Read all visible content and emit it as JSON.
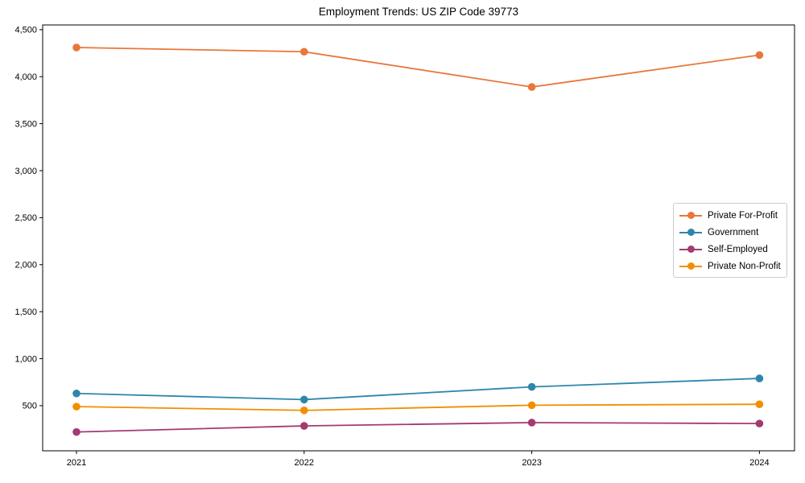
{
  "chart_data": {
    "type": "line",
    "title": "Employment Trends: US ZIP Code 39773",
    "categories": [
      "2021",
      "2022",
      "2023",
      "2024"
    ],
    "series": [
      {
        "name": "Private For-Profit",
        "color": "#E8773B",
        "values": [
          4310,
          4265,
          3890,
          4230
        ]
      },
      {
        "name": "Government",
        "color": "#2E86AB",
        "values": [
          630,
          565,
          700,
          790
        ]
      },
      {
        "name": "Self-Employed",
        "color": "#A23B72",
        "values": [
          220,
          285,
          320,
          310
        ]
      },
      {
        "name": "Private Non-Profit",
        "color": "#F18F01",
        "values": [
          490,
          450,
          505,
          515
        ]
      }
    ],
    "xlabel": "",
    "ylabel": "",
    "ylim": [
      20,
      4550
    ],
    "yticks": [
      500,
      1000,
      1500,
      2000,
      2500,
      3000,
      3500,
      4000,
      4500
    ],
    "grid": false,
    "legend_position": "center-right",
    "marker": "circle",
    "frame_color": "#000000",
    "background": "#ffffff"
  }
}
